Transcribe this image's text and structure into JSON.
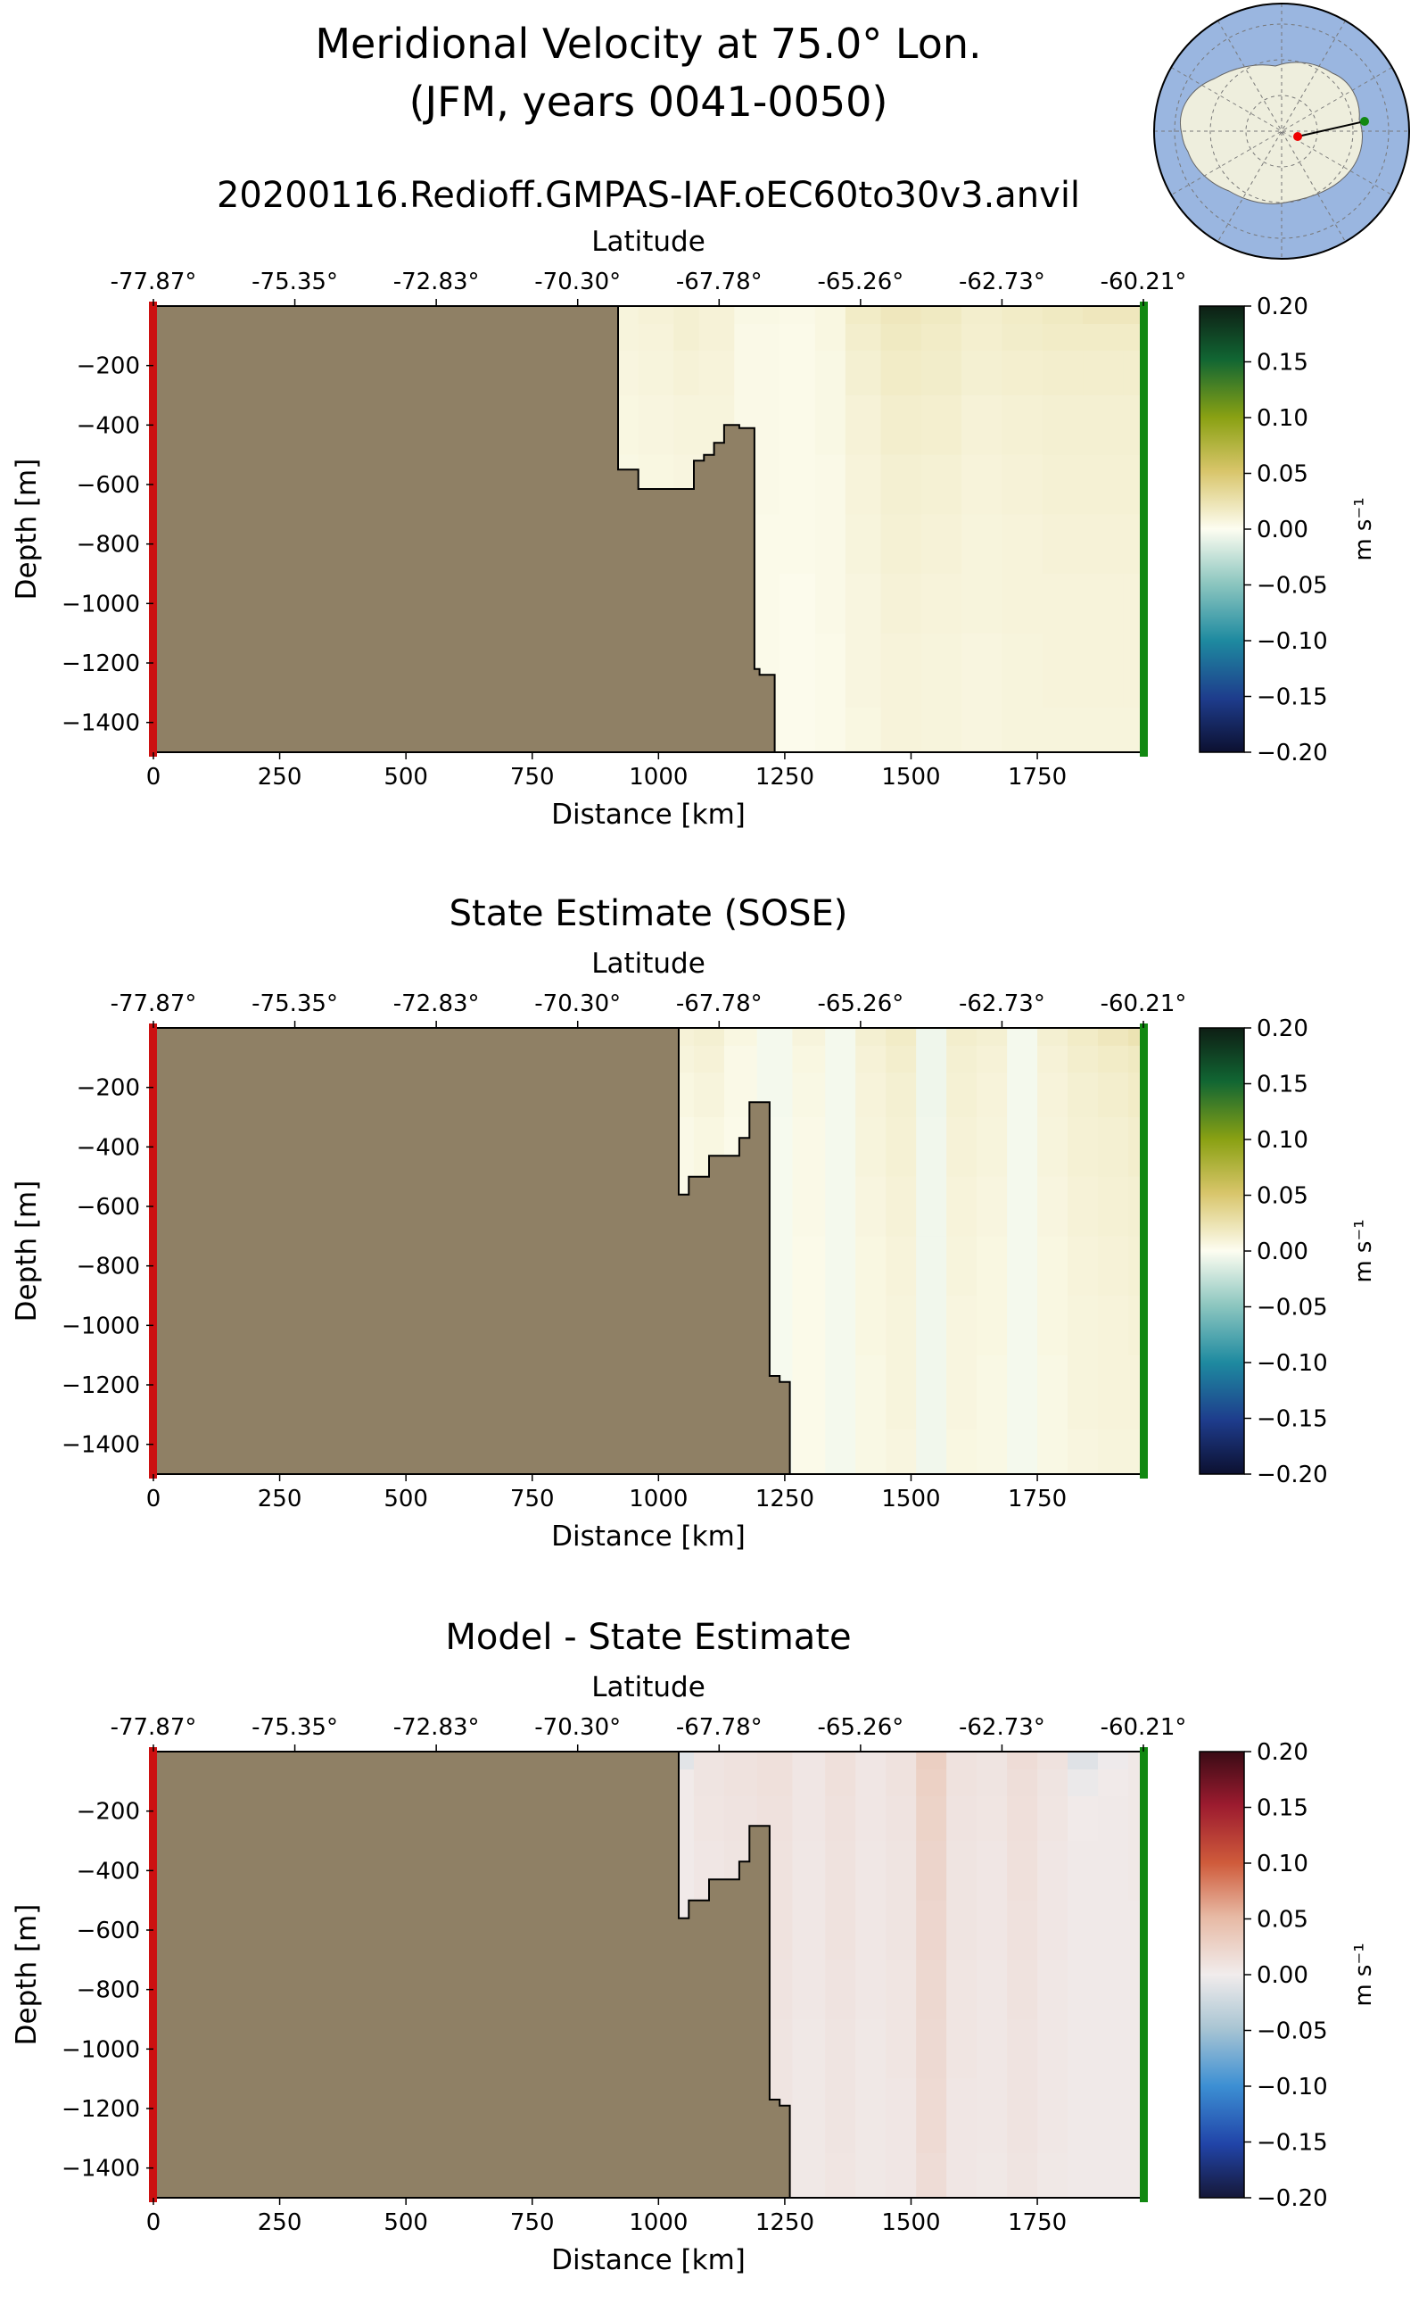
{
  "header": {
    "title_line1": "Meridional Velocity at 75.0° Lon.",
    "title_line2": "(JFM, years 0041-0050)",
    "subtitle": "20200116.Redioff.GMPAS-IAF.oEC60to30v3.anvil"
  },
  "colors": {
    "land": "#8f8065",
    "start_marker": "#cc1111",
    "end_marker": "#118811",
    "ocean": "#9ab6e0",
    "antarctica": "#eeeedd"
  },
  "chart_data": [
    {
      "type": "heatmap",
      "title": "",
      "xlabel": "Distance [km]",
      "ylabel": "Depth [m]",
      "top_axis_label": "Latitude",
      "top_tick_labels": [
        "-77.87°",
        "-75.35°",
        "-72.83°",
        "-70.30°",
        "-67.78°",
        "-65.26°",
        "-62.73°",
        "-60.21°"
      ],
      "xticks": [
        0,
        250,
        500,
        750,
        1000,
        1250,
        1500,
        1750
      ],
      "yticks": [
        -200,
        -400,
        -600,
        -800,
        -1000,
        -1200,
        -1400
      ],
      "xlim": [
        0,
        1960
      ],
      "ylim": [
        -1500,
        0
      ],
      "colorbar": {
        "label": "m s⁻¹",
        "ticks": [
          0.2,
          0.15,
          0.1,
          0.05,
          0.0,
          -0.05,
          -0.1,
          -0.15,
          -0.2
        ],
        "tick_labels": [
          "0.20",
          "0.15",
          "0.10",
          "0.05",
          "0.00",
          "−0.05",
          "−0.10",
          "−0.15",
          "−0.20"
        ],
        "range": [
          -0.2,
          0.2
        ],
        "colormap": "ocean"
      },
      "bathymetry": {
        "distance_km": [
          0,
          920,
          920,
          960,
          960,
          1070,
          1070,
          1090,
          1090,
          1110,
          1110,
          1130,
          1130,
          1160,
          1160,
          1190,
          1190,
          1200,
          1200,
          1230,
          1230,
          1235
        ],
        "depth_m": [
          0,
          0,
          -550,
          -550,
          -615,
          -615,
          -520,
          -520,
          -500,
          -500,
          -460,
          -460,
          -400,
          -400,
          -410,
          -410,
          -1220,
          -1220,
          -1240,
          -1240,
          -1500,
          -1500
        ]
      },
      "velocity_field": {
        "distance_km": [
          920,
          1000,
          1060,
          1100,
          1200,
          1280,
          1340,
          1400,
          1480,
          1560,
          1640,
          1720,
          1800,
          1880,
          1960
        ],
        "depth_m": [
          -20,
          -100,
          -200,
          -400,
          -600,
          -800,
          -1000,
          -1200,
          -1500
        ],
        "values": [
          [
            0.008,
            0.01,
            0.012,
            0.01,
            0.005,
            0.004,
            0.006,
            0.016,
            0.02,
            0.018,
            0.014,
            0.016,
            0.018,
            0.02,
            0.02
          ],
          [
            0.008,
            0.009,
            0.012,
            0.01,
            0.004,
            0.003,
            0.006,
            0.014,
            0.018,
            0.016,
            0.013,
            0.015,
            0.016,
            0.016,
            0.016
          ],
          [
            0.007,
            0.008,
            0.01,
            0.009,
            0.004,
            0.003,
            0.005,
            0.012,
            0.016,
            0.015,
            0.012,
            0.013,
            0.014,
            0.014,
            0.014
          ],
          [
            0.006,
            0.007,
            0.008,
            0.008,
            0.004,
            0.003,
            0.005,
            0.01,
            0.014,
            0.013,
            0.01,
            0.011,
            0.012,
            0.012,
            0.012
          ],
          [
            0.005,
            0.006,
            0.007,
            0.007,
            0.004,
            0.003,
            0.004,
            0.009,
            0.012,
            0.011,
            0.009,
            0.01,
            0.011,
            0.011,
            0.011
          ],
          [
            0.005,
            0.005,
            0.006,
            0.006,
            0.003,
            0.003,
            0.004,
            0.008,
            0.011,
            0.01,
            0.008,
            0.009,
            0.01,
            0.01,
            0.01
          ],
          [
            0.004,
            0.005,
            0.005,
            0.005,
            0.003,
            0.002,
            0.004,
            0.007,
            0.01,
            0.009,
            0.008,
            0.009,
            0.009,
            0.009,
            0.009
          ],
          [
            0.004,
            0.004,
            0.005,
            0.005,
            0.003,
            0.002,
            0.003,
            0.007,
            0.009,
            0.008,
            0.007,
            0.008,
            0.009,
            0.009,
            0.009
          ],
          [
            0.004,
            0.004,
            0.004,
            0.004,
            0.003,
            0.002,
            0.003,
            0.006,
            0.009,
            0.008,
            0.007,
            0.008,
            0.008,
            0.008,
            0.008
          ]
        ]
      }
    },
    {
      "type": "heatmap",
      "title": "State Estimate (SOSE)",
      "xlabel": "Distance [km]",
      "ylabel": "Depth [m]",
      "top_axis_label": "Latitude",
      "top_tick_labels": [
        "-77.87°",
        "-75.35°",
        "-72.83°",
        "-70.30°",
        "-67.78°",
        "-65.26°",
        "-62.73°",
        "-60.21°"
      ],
      "xticks": [
        0,
        250,
        500,
        750,
        1000,
        1250,
        1500,
        1750
      ],
      "yticks": [
        -200,
        -400,
        -600,
        -800,
        -1000,
        -1200,
        -1400
      ],
      "xlim": [
        0,
        1960
      ],
      "ylim": [
        -1500,
        0
      ],
      "colorbar": {
        "label": "m s⁻¹",
        "ticks": [
          0.2,
          0.15,
          0.1,
          0.05,
          0.0,
          -0.05,
          -0.1,
          -0.15,
          -0.2
        ],
        "tick_labels": [
          "0.20",
          "0.15",
          "0.10",
          "0.05",
          "0.00",
          "−0.05",
          "−0.10",
          "−0.15",
          "−0.20"
        ],
        "range": [
          -0.2,
          0.2
        ],
        "colormap": "ocean"
      },
      "bathymetry": {
        "distance_km": [
          0,
          1040,
          1040,
          1060,
          1060,
          1100,
          1100,
          1160,
          1160,
          1180,
          1180,
          1220,
          1220,
          1240,
          1240,
          1260,
          1260,
          1262
        ],
        "depth_m": [
          0,
          0,
          -560,
          -560,
          -500,
          -500,
          -430,
          -430,
          -370,
          -370,
          -250,
          -250,
          -1170,
          -1170,
          -1190,
          -1190,
          -1500,
          -1500
        ]
      },
      "velocity_field": {
        "distance_km": [
          1040,
          1100,
          1160,
          1230,
          1300,
          1360,
          1420,
          1480,
          1540,
          1600,
          1660,
          1720,
          1780,
          1840,
          1900,
          1960
        ],
        "depth_m": [
          -20,
          -100,
          -200,
          -400,
          -600,
          -800,
          -1000,
          -1200,
          -1500
        ],
        "values": [
          [
            0.01,
            0.012,
            0.006,
            -0.004,
            0.008,
            -0.004,
            0.012,
            0.016,
            -0.006,
            0.014,
            0.012,
            -0.004,
            0.012,
            0.016,
            0.02,
            0.024
          ],
          [
            0.008,
            0.01,
            0.004,
            -0.004,
            0.006,
            -0.004,
            0.01,
            0.014,
            -0.006,
            0.012,
            0.01,
            -0.004,
            0.01,
            0.014,
            0.016,
            0.018
          ],
          [
            0.006,
            0.008,
            0.004,
            -0.004,
            0.005,
            -0.004,
            0.009,
            0.012,
            -0.006,
            0.011,
            0.009,
            -0.004,
            0.009,
            0.012,
            0.014,
            0.016
          ],
          [
            0.004,
            0.006,
            0.003,
            -0.003,
            0.004,
            -0.004,
            0.008,
            0.011,
            -0.005,
            0.01,
            0.008,
            -0.004,
            0.008,
            0.011,
            0.012,
            0.014
          ],
          [
            0.003,
            0.004,
            0.002,
            -0.003,
            0.004,
            -0.004,
            0.007,
            0.01,
            -0.005,
            0.009,
            0.007,
            -0.004,
            0.007,
            0.01,
            0.011,
            0.012
          ],
          [
            0.002,
            0.003,
            0.002,
            -0.003,
            0.003,
            -0.004,
            0.006,
            0.009,
            -0.005,
            0.008,
            0.006,
            -0.004,
            0.006,
            0.009,
            0.01,
            0.011
          ],
          [
            0.002,
            0.003,
            0.002,
            -0.003,
            0.003,
            -0.004,
            0.006,
            0.008,
            -0.005,
            0.007,
            0.006,
            -0.004,
            0.006,
            0.008,
            0.009,
            0.01
          ],
          [
            0.002,
            0.002,
            0.002,
            -0.003,
            0.003,
            -0.004,
            0.005,
            0.008,
            -0.005,
            0.007,
            0.005,
            -0.004,
            0.005,
            0.008,
            0.009,
            0.009
          ],
          [
            0.002,
            0.002,
            0.002,
            -0.003,
            0.003,
            -0.004,
            0.005,
            0.007,
            -0.005,
            0.006,
            0.005,
            -0.004,
            0.005,
            0.007,
            0.008,
            0.008
          ]
        ]
      }
    },
    {
      "type": "heatmap",
      "title": "Model - State Estimate",
      "xlabel": "Distance [km]",
      "ylabel": "Depth [m]",
      "top_axis_label": "Latitude",
      "top_tick_labels": [
        "-77.87°",
        "-75.35°",
        "-72.83°",
        "-70.30°",
        "-67.78°",
        "-65.26°",
        "-62.73°",
        "-60.21°"
      ],
      "xticks": [
        0,
        250,
        500,
        750,
        1000,
        1250,
        1500,
        1750
      ],
      "yticks": [
        -200,
        -400,
        -600,
        -800,
        -1000,
        -1200,
        -1400
      ],
      "xlim": [
        0,
        1960
      ],
      "ylim": [
        -1500,
        0
      ],
      "colorbar": {
        "label": "m s⁻¹",
        "ticks": [
          0.2,
          0.15,
          0.1,
          0.05,
          0.0,
          -0.05,
          -0.1,
          -0.15,
          -0.2
        ],
        "tick_labels": [
          "0.20",
          "0.15",
          "0.10",
          "0.05",
          "0.00",
          "−0.05",
          "−0.10",
          "−0.15",
          "−0.20"
        ],
        "range": [
          -0.2,
          0.2
        ],
        "colormap": "balance"
      },
      "bathymetry": {
        "distance_km": [
          0,
          1040,
          1040,
          1060,
          1060,
          1100,
          1100,
          1160,
          1160,
          1180,
          1180,
          1220,
          1220,
          1240,
          1240,
          1260,
          1260,
          1262
        ],
        "depth_m": [
          0,
          0,
          -560,
          -560,
          -500,
          -500,
          -430,
          -430,
          -370,
          -370,
          -250,
          -250,
          -1170,
          -1170,
          -1190,
          -1190,
          -1500,
          -1500
        ]
      },
      "velocity_field": {
        "distance_km": [
          1040,
          1100,
          1160,
          1230,
          1300,
          1360,
          1420,
          1480,
          1540,
          1600,
          1660,
          1720,
          1780,
          1840,
          1900,
          1960
        ],
        "depth_m": [
          -20,
          -100,
          -200,
          -400,
          -600,
          -800,
          -1000,
          -1200,
          -1500
        ],
        "values": [
          [
            -0.01,
            0.008,
            0.01,
            0.012,
            0.006,
            0.012,
            0.006,
            0.01,
            0.03,
            0.01,
            0.008,
            0.016,
            0.01,
            -0.012,
            -0.002,
            0.004
          ],
          [
            0.002,
            0.008,
            0.01,
            0.012,
            0.006,
            0.012,
            0.006,
            0.01,
            0.028,
            0.01,
            0.008,
            0.014,
            0.008,
            -0.004,
            0.002,
            0.004
          ],
          [
            0.002,
            0.007,
            0.009,
            0.011,
            0.006,
            0.011,
            0.006,
            0.009,
            0.026,
            0.009,
            0.007,
            0.013,
            0.007,
            0.002,
            0.003,
            0.004
          ],
          [
            0.002,
            0.006,
            0.008,
            0.01,
            0.005,
            0.01,
            0.005,
            0.008,
            0.024,
            0.008,
            0.006,
            0.012,
            0.006,
            0.003,
            0.003,
            0.004
          ],
          [
            0.002,
            0.005,
            0.007,
            0.01,
            0.005,
            0.01,
            0.005,
            0.008,
            0.022,
            0.008,
            0.006,
            0.011,
            0.006,
            0.003,
            0.003,
            0.003
          ],
          [
            0.002,
            0.005,
            0.006,
            0.009,
            0.005,
            0.009,
            0.005,
            0.007,
            0.02,
            0.007,
            0.005,
            0.01,
            0.005,
            0.003,
            0.003,
            0.003
          ],
          [
            0.002,
            0.004,
            0.006,
            0.008,
            0.004,
            0.008,
            0.004,
            0.007,
            0.019,
            0.007,
            0.005,
            0.009,
            0.005,
            0.003,
            0.003,
            0.003
          ],
          [
            0.002,
            0.004,
            0.005,
            0.008,
            0.004,
            0.008,
            0.004,
            0.006,
            0.018,
            0.006,
            0.005,
            0.009,
            0.005,
            0.003,
            0.003,
            0.003
          ],
          [
            0.002,
            0.004,
            0.005,
            0.007,
            0.004,
            0.007,
            0.004,
            0.006,
            0.016,
            0.006,
            0.004,
            0.008,
            0.004,
            0.003,
            0.003,
            0.003
          ]
        ]
      }
    }
  ]
}
